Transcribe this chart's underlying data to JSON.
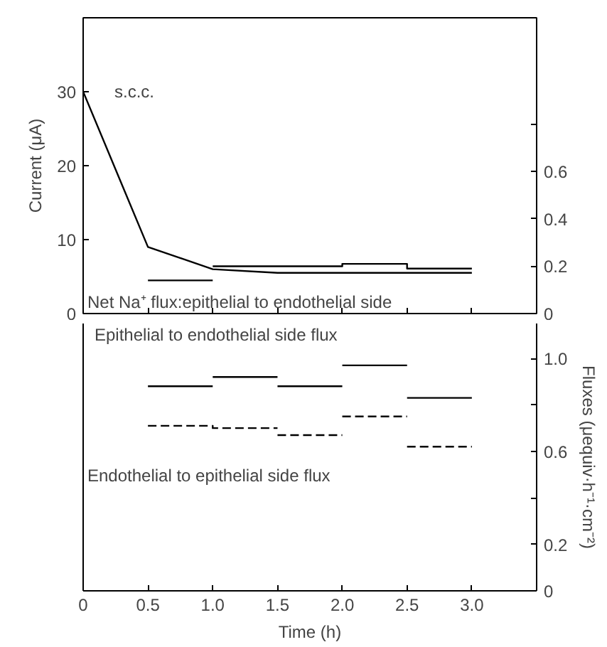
{
  "chart_data": [
    {
      "type": "line",
      "ylabel": "Current (μA)",
      "x": [
        0,
        0.5,
        1.0,
        1.5,
        2.0,
        2.5,
        3.0
      ],
      "xlim": [
        0,
        3.5
      ],
      "xticks": [
        {
          "value": 0,
          "label": null
        },
        {
          "value": 0.5,
          "label": null
        },
        {
          "value": 1.0,
          "label": null
        },
        {
          "value": 1.5,
          "label": null
        },
        {
          "value": 2.0,
          "label": null
        },
        {
          "value": 2.5,
          "label": null
        },
        {
          "value": 3.0,
          "label": null
        }
      ],
      "ylim": [
        0,
        40
      ],
      "yticks": [
        0,
        10,
        20,
        30
      ],
      "y2lim": [
        0,
        1.25
      ],
      "y2ticks": [
        0,
        0.2,
        0.4,
        0.6,
        {
          "value": 0.8,
          "label": null
        }
      ],
      "tick_labels": "y",
      "grid": false,
      "series": [
        {
          "color": "#000000",
          "line_style": "solid",
          "values": [
            30,
            9,
            6,
            5.5,
            5.5,
            5.5,
            5.5
          ]
        },
        {
          "axis": "y2",
          "color": "#000000",
          "line_style": "solid",
          "x": [
            0.5,
            1.0
          ],
          "values": [
            0.14,
            0.14
          ]
        },
        {
          "axis": "y2",
          "color": "#000000",
          "line_style": "solid",
          "x": [
            1.0,
            1.5,
            2.0,
            2.0,
            2.5,
            2.5,
            3.0
          ],
          "values": [
            0.2,
            0.2,
            0.2,
            0.21,
            0.21,
            0.19,
            0.19
          ]
        }
      ],
      "annotations": [
        "s.c.c.",
        "Net Na⁺ flux:epithelial to endothelial side"
      ]
    },
    {
      "type": "line",
      "xlabel": "Time (h)",
      "y2label": "Fluxes (μequiv·h⁻¹·cm⁻²)",
      "xlim": [
        0,
        3.5
      ],
      "xticks": [
        0,
        0.5,
        {
          "value": 1.0,
          "label": "1.0"
        },
        1.5,
        {
          "value": 2.0,
          "label": "2.0"
        },
        2.5,
        {
          "value": 3.0,
          "label": "3.0"
        }
      ],
      "y2lim": [
        0,
        1.15
      ],
      "y2ticks": [
        0,
        0.2,
        {
          "value": 0.4,
          "label": null
        },
        0.6,
        {
          "value": 0.8,
          "label": null
        },
        {
          "value": 1.0,
          "label": "1.0"
        }
      ],
      "grid": false,
      "series": [
        {
          "axis": "y2",
          "color": "#000000",
          "line_style": "solid",
          "x": [
            0.5,
            1.0
          ],
          "values": [
            0.88,
            0.88
          ]
        },
        {
          "axis": "y2",
          "color": "#000000",
          "line_style": "solid",
          "x": [
            1.0,
            1.5
          ],
          "values": [
            0.92,
            0.92
          ]
        },
        {
          "axis": "y2",
          "color": "#000000",
          "line_style": "solid",
          "x": [
            1.5,
            2.0
          ],
          "values": [
            0.88,
            0.88
          ]
        },
        {
          "axis": "y2",
          "color": "#000000",
          "line_style": "solid",
          "x": [
            2.0,
            2.5
          ],
          "values": [
            0.97,
            0.97
          ]
        },
        {
          "axis": "y2",
          "color": "#000000",
          "line_style": "solid",
          "x": [
            2.5,
            3.0
          ],
          "values": [
            0.83,
            0.83
          ]
        },
        {
          "axis": "y2",
          "color": "#000000",
          "line_style": "dashed",
          "x": [
            0.5,
            1.0,
            1.0,
            1.5
          ],
          "values": [
            0.71,
            0.71,
            0.7,
            0.7
          ]
        },
        {
          "axis": "y2",
          "color": "#000000",
          "line_style": "dashed",
          "x": [
            1.5,
            2.0
          ],
          "values": [
            0.67,
            0.67
          ]
        },
        {
          "axis": "y2",
          "color": "#000000",
          "line_style": "dashed",
          "x": [
            2.0,
            2.5
          ],
          "values": [
            0.75,
            0.75
          ]
        },
        {
          "axis": "y2",
          "color": "#000000",
          "line_style": "dashed",
          "x": [
            2.5,
            3.0
          ],
          "values": [
            0.62,
            0.62
          ]
        }
      ],
      "annotations": [
        "Epithelial to endothelial side flux",
        "Endothelial to epithelial side flux"
      ]
    }
  ]
}
